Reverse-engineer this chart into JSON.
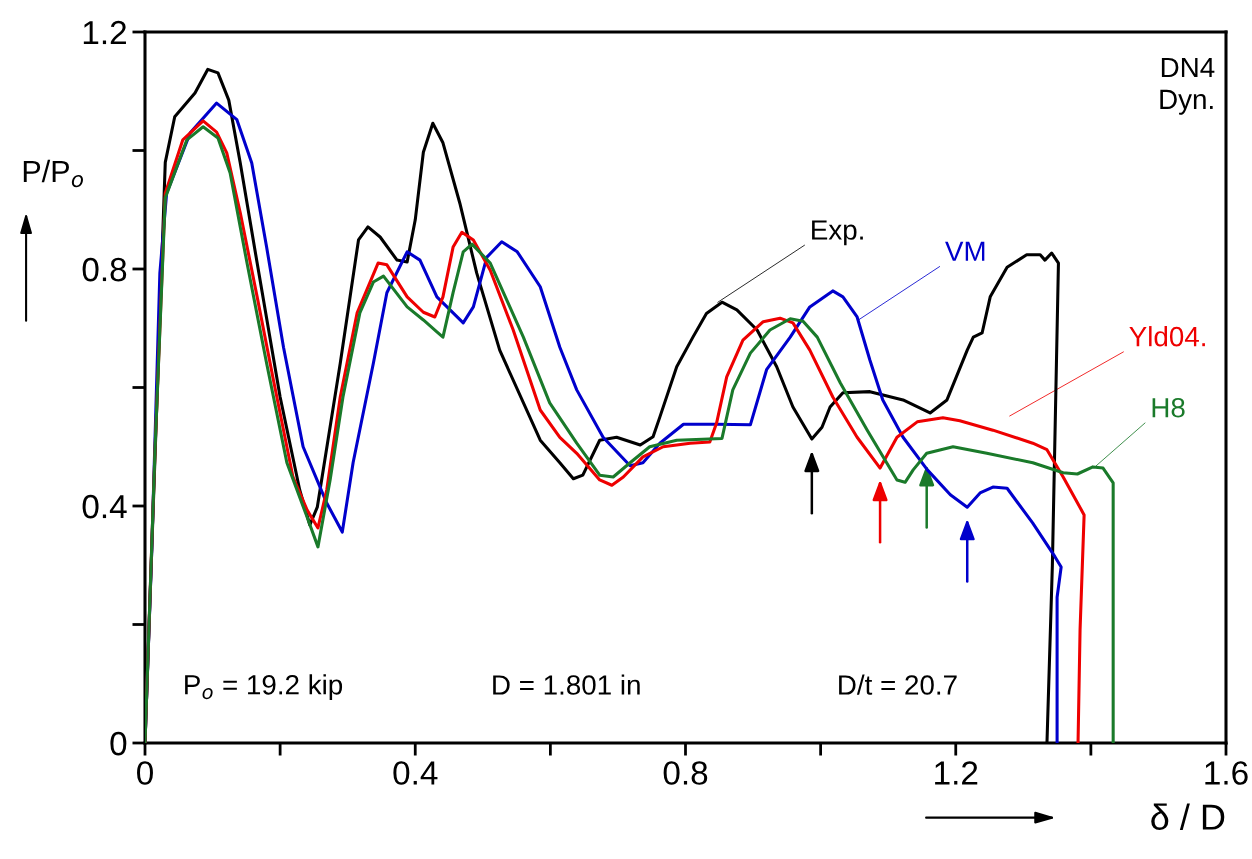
{
  "chart_data": {
    "type": "line",
    "xlabel": "δ / D",
    "ylabel": "P/P$_{o}$",
    "xlim": [
      0,
      1.6
    ],
    "ylim": [
      0,
      1.2
    ],
    "xticks": [
      0,
      {
        "value": 0.2,
        "label": null
      },
      0.4,
      {
        "value": 0.6,
        "label": null
      },
      0.8,
      {
        "value": 1.0,
        "label": null
      },
      1.2,
      {
        "value": 1.4,
        "label": null
      },
      1.6
    ],
    "yticks": [
      0,
      {
        "value": 0.2,
        "label": null
      },
      0.4,
      {
        "value": 0.6,
        "label": null
      },
      0.8,
      {
        "value": 1.0,
        "label": null
      },
      1.2
    ],
    "grid": false,
    "legend": false,
    "marker": "none",
    "line_style": "solid",
    "annotations": [
      "DN4\nDyn.",
      "P$_{o}$ = 19.2 kip",
      "D = 1.801 in",
      "D/t = 20.7"
    ],
    "series": [
      {
        "name": "Exp.",
        "color": "#000000",
        "x": [
          0,
          0.03,
          0.044,
          0.074,
          0.093,
          0.108,
          0.124,
          0.141,
          0.166,
          0.2,
          0.229,
          0.244,
          0.255,
          0.289,
          0.316,
          0.33,
          0.348,
          0.373,
          0.388,
          0.4,
          0.412,
          0.426,
          0.441,
          0.466,
          0.491,
          0.525,
          0.585,
          0.614,
          0.634,
          0.648,
          0.673,
          0.698,
          0.733,
          0.752,
          0.762,
          0.787,
          0.811,
          0.831,
          0.854,
          0.876,
          0.906,
          0.935,
          0.959,
          0.987,
          1.002,
          1.014,
          1.033,
          1.073,
          1.122,
          1.162,
          1.187,
          1.217,
          1.226,
          1.239,
          1.251,
          1.276,
          1.305,
          1.325,
          1.332,
          1.342,
          1.352,
          1.343,
          1.335
        ],
        "values": [
          0,
          0.98,
          1.057,
          1.097,
          1.137,
          1.131,
          1.085,
          0.979,
          0.81,
          0.584,
          0.427,
          0.368,
          0.398,
          0.641,
          0.849,
          0.871,
          0.854,
          0.815,
          0.812,
          0.883,
          0.997,
          1.046,
          1.013,
          0.911,
          0.793,
          0.663,
          0.511,
          0.473,
          0.446,
          0.452,
          0.511,
          0.516,
          0.503,
          0.517,
          0.55,
          0.635,
          0.685,
          0.725,
          0.744,
          0.731,
          0.697,
          0.635,
          0.567,
          0.513,
          0.533,
          0.567,
          0.591,
          0.593,
          0.579,
          0.557,
          0.579,
          0.663,
          0.685,
          0.692,
          0.753,
          0.803,
          0.824,
          0.824,
          0.815,
          0.827,
          0.81,
          0.3,
          0
        ]
      },
      {
        "name": "VM",
        "color": "#0000cc",
        "x": [
          0,
          0.01,
          0.022,
          0.032,
          0.067,
          0.106,
          0.136,
          0.158,
          0.18,
          0.205,
          0.234,
          0.269,
          0.292,
          0.308,
          0.338,
          0.358,
          0.388,
          0.407,
          0.432,
          0.471,
          0.486,
          0.506,
          0.528,
          0.551,
          0.585,
          0.614,
          0.639,
          0.678,
          0.718,
          0.737,
          0.762,
          0.797,
          0.846,
          0.896,
          0.92,
          0.955,
          0.984,
          1.018,
          1.033,
          1.054,
          1.073,
          1.092,
          1.122,
          1.158,
          1.192,
          1.217,
          1.236,
          1.255,
          1.276,
          1.314,
          1.347,
          1.356,
          1.35,
          1.35
        ],
        "values": [
          0,
          0.326,
          0.793,
          0.928,
          1.03,
          1.08,
          1.052,
          0.979,
          0.837,
          0.668,
          0.5,
          0.405,
          0.356,
          0.473,
          0.641,
          0.76,
          0.829,
          0.815,
          0.753,
          0.709,
          0.736,
          0.82,
          0.846,
          0.829,
          0.77,
          0.668,
          0.596,
          0.516,
          0.468,
          0.473,
          0.506,
          0.538,
          0.538,
          0.537,
          0.63,
          0.685,
          0.736,
          0.763,
          0.753,
          0.719,
          0.646,
          0.579,
          0.516,
          0.461,
          0.419,
          0.398,
          0.422,
          0.432,
          0.43,
          0.371,
          0.314,
          0.297,
          0.246,
          0
        ]
      },
      {
        "name": "Yld04.",
        "color": "#ee0000",
        "x": [
          0,
          0.015,
          0.03,
          0.056,
          0.086,
          0.106,
          0.121,
          0.141,
          0.166,
          0.19,
          0.219,
          0.24,
          0.256,
          0.269,
          0.289,
          0.314,
          0.345,
          0.358,
          0.388,
          0.412,
          0.429,
          0.441,
          0.456,
          0.469,
          0.486,
          0.511,
          0.545,
          0.585,
          0.614,
          0.639,
          0.673,
          0.691,
          0.708,
          0.737,
          0.767,
          0.807,
          0.836,
          0.846,
          0.861,
          0.885,
          0.915,
          0.94,
          0.959,
          0.984,
          1.018,
          1.054,
          1.088,
          1.113,
          1.143,
          1.181,
          1.206,
          1.255,
          1.314,
          1.335,
          1.359,
          1.39,
          1.384,
          1.381
        ],
        "values": [
          0,
          0.5,
          0.928,
          1.018,
          1.05,
          1.031,
          0.996,
          0.895,
          0.753,
          0.613,
          0.449,
          0.393,
          0.363,
          0.427,
          0.584,
          0.726,
          0.81,
          0.807,
          0.753,
          0.727,
          0.719,
          0.753,
          0.837,
          0.862,
          0.849,
          0.798,
          0.697,
          0.562,
          0.516,
          0.489,
          0.444,
          0.435,
          0.449,
          0.483,
          0.5,
          0.506,
          0.508,
          0.54,
          0.618,
          0.68,
          0.711,
          0.717,
          0.709,
          0.663,
          0.584,
          0.516,
          0.464,
          0.516,
          0.542,
          0.549,
          0.544,
          0.528,
          0.506,
          0.495,
          0.449,
          0.385,
          0.191,
          0
        ]
      },
      {
        "name": "H8",
        "color": "#1a7a2a",
        "x": [
          0,
          0.015,
          0.03,
          0.062,
          0.086,
          0.108,
          0.126,
          0.151,
          0.18,
          0.21,
          0.24,
          0.256,
          0.274,
          0.293,
          0.318,
          0.338,
          0.353,
          0.388,
          0.412,
          0.432,
          0.441,
          0.456,
          0.471,
          0.484,
          0.511,
          0.56,
          0.599,
          0.639,
          0.673,
          0.693,
          0.718,
          0.747,
          0.787,
          0.854,
          0.87,
          0.896,
          0.925,
          0.955,
          0.974,
          0.995,
          1.029,
          1.069,
          1.113,
          1.125,
          1.137,
          1.157,
          1.196,
          1.246,
          1.314,
          1.359,
          1.38,
          1.403,
          1.418,
          1.433,
          1.433
        ],
        "values": [
          0,
          0.5,
          0.92,
          1.018,
          1.04,
          1.021,
          0.962,
          0.81,
          0.641,
          0.473,
          0.381,
          0.331,
          0.444,
          0.584,
          0.726,
          0.778,
          0.788,
          0.736,
          0.714,
          0.694,
          0.685,
          0.76,
          0.829,
          0.842,
          0.81,
          0.685,
          0.574,
          0.506,
          0.452,
          0.449,
          0.473,
          0.5,
          0.511,
          0.514,
          0.596,
          0.658,
          0.697,
          0.716,
          0.712,
          0.685,
          0.608,
          0.528,
          0.444,
          0.44,
          0.461,
          0.489,
          0.5,
          0.489,
          0.473,
          0.456,
          0.454,
          0.466,
          0.464,
          0.439,
          0
        ]
      }
    ]
  }
}
